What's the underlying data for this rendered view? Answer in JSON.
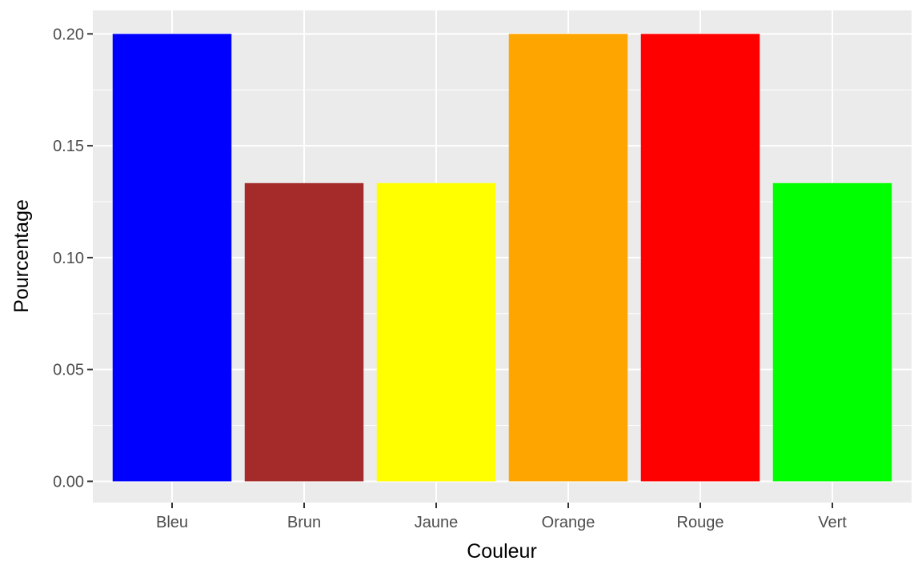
{
  "chart_data": {
    "type": "bar",
    "title": "",
    "xlabel": "Couleur",
    "ylabel": "Pourcentage",
    "categories": [
      "Bleu",
      "Brun",
      "Jaune",
      "Orange",
      "Rouge",
      "Vert"
    ],
    "values": [
      0.2,
      0.1333,
      0.1333,
      0.2,
      0.2,
      0.1333
    ],
    "bar_colors": [
      "#0000FF",
      "#A52A2A",
      "#FFFF00",
      "#FFA500",
      "#FF0000",
      "#00FF00"
    ],
    "yticks": [
      "0.00",
      "0.05",
      "0.10",
      "0.15",
      "0.20"
    ],
    "ylim": [
      -0.0095,
      0.2105
    ],
    "grid": true,
    "legend": "none",
    "colors": {
      "panel_background": "#EBEBEB",
      "grid_major": "#FFFFFF",
      "tick_label": "#4D4D4D",
      "axis_title": "#000000"
    }
  }
}
